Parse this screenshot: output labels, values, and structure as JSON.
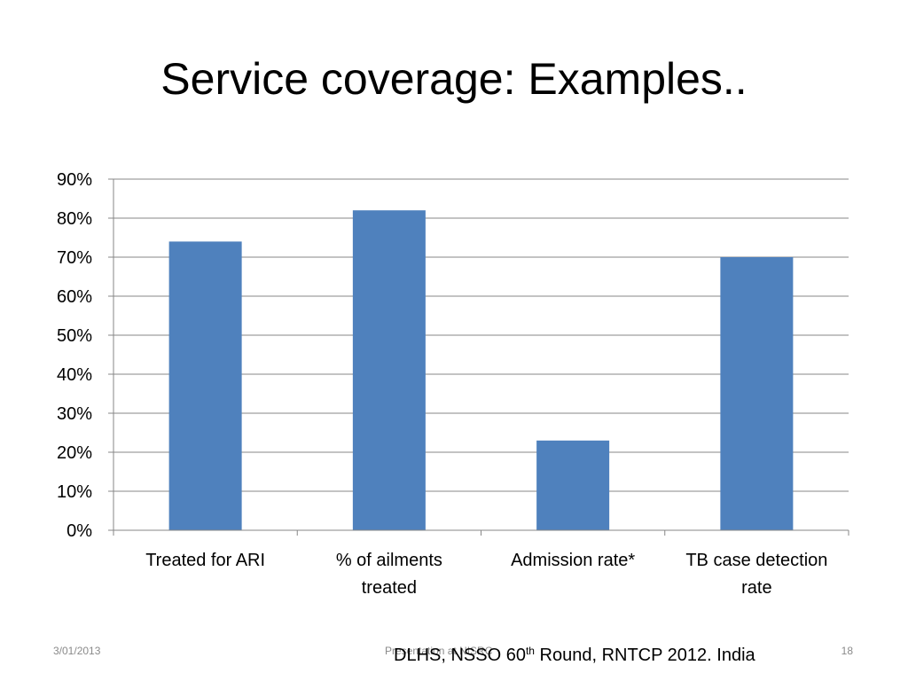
{
  "slide": {
    "title": "Service coverage: Examples..",
    "date": "3/01/2013",
    "footer_center": "Presentation at NISRC",
    "page_number": "18",
    "source": {
      "pre": "DLHS, NSSO 60",
      "sup": "th",
      "post": " Round, RNTCP 2012. India"
    }
  },
  "colors": {
    "bar": "#4f81bd",
    "grid": "#878787",
    "axis": "#878787",
    "text": "#000000"
  },
  "chart_data": {
    "type": "bar",
    "categories": [
      [
        "Treated for ARI"
      ],
      [
        "% of ailments",
        "treated"
      ],
      [
        "Admission rate*"
      ],
      [
        "TB case detection",
        "rate"
      ]
    ],
    "values": [
      74,
      82,
      23,
      70
    ],
    "ylim": [
      0,
      90
    ],
    "ytick_step": 10,
    "y_format": "percent",
    "grid": true,
    "legend": "none"
  }
}
